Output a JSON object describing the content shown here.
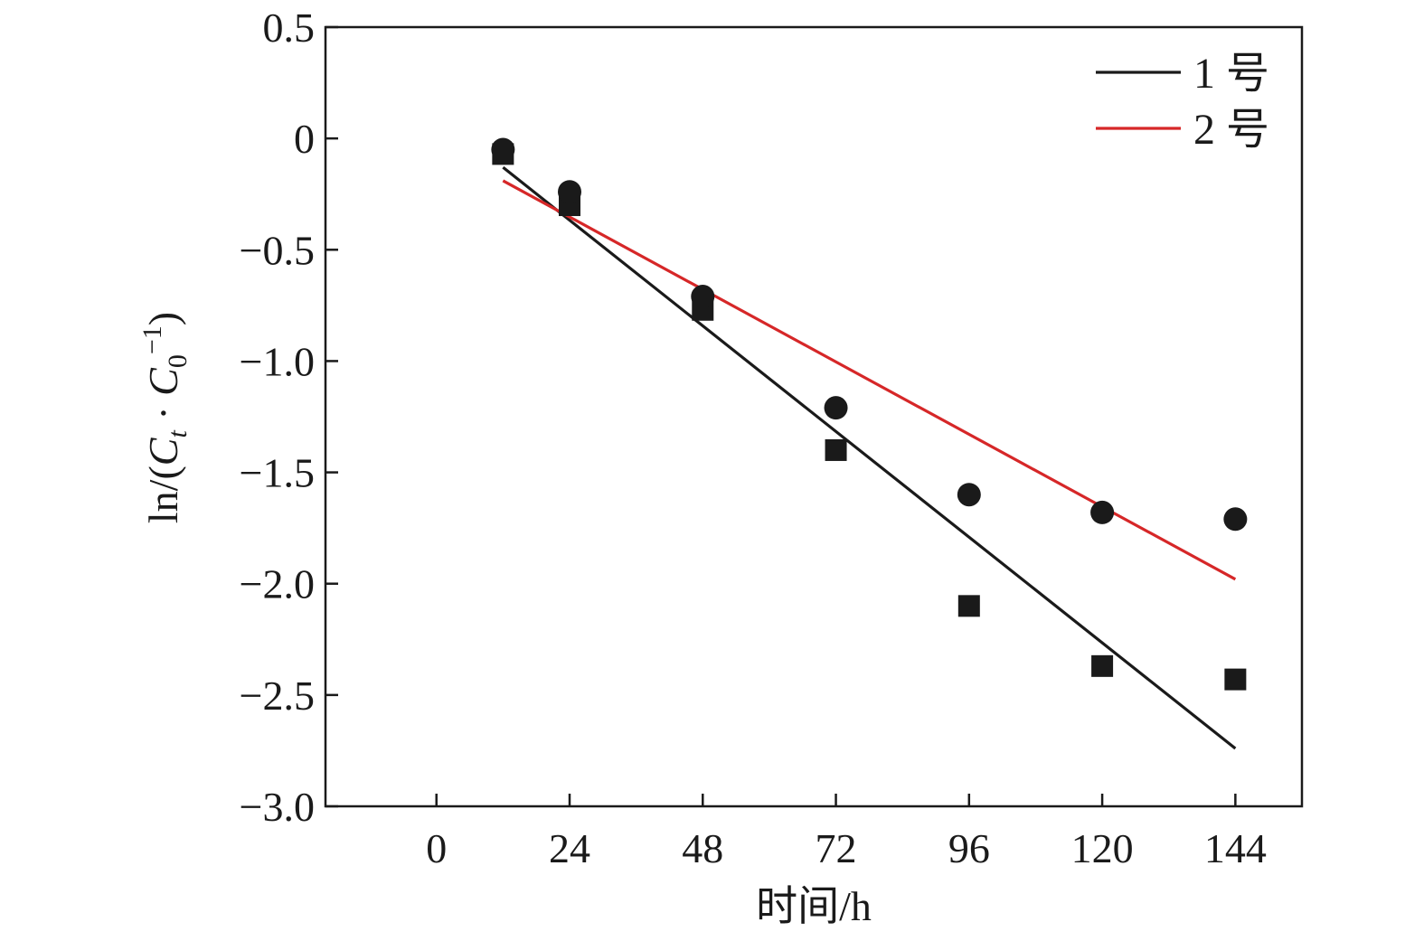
{
  "chart_data": {
    "type": "scatter",
    "x_title": "时间/h",
    "y_title_parts": [
      "ln/(",
      "C",
      "t",
      " · ",
      "C",
      "0",
      "−1",
      ")"
    ],
    "xlim": [
      -20,
      156
    ],
    "ylim": [
      -3.0,
      0.5
    ],
    "x_ticks": [
      0,
      24,
      48,
      72,
      96,
      120,
      144
    ],
    "y_ticks": [
      0.5,
      0,
      -0.5,
      -1.0,
      -1.5,
      -2.0,
      -2.5,
      -3.0
    ],
    "x_tick_labels": [
      "0",
      "24",
      "48",
      "72",
      "96",
      "120",
      "144"
    ],
    "y_tick_labels": [
      "0.5",
      "0",
      "−0.5",
      "−1.0",
      "−1.5",
      "−2.0",
      "−2.5",
      "−3.0"
    ],
    "series": [
      {
        "name": "1 号",
        "marker": "square",
        "color": "#1a1a1a",
        "x": [
          12,
          24,
          48,
          72,
          96,
          120,
          144
        ],
        "y": [
          -0.07,
          -0.3,
          -0.77,
          -1.4,
          -2.1,
          -2.37,
          -2.43
        ],
        "fit": {
          "x": [
            12,
            144
          ],
          "y": [
            -0.13,
            -2.74
          ]
        }
      },
      {
        "name": "2 号",
        "marker": "circle",
        "color": "#d62728",
        "point_color": "#1a1a1a",
        "x": [
          12,
          24,
          48,
          72,
          96,
          120,
          144
        ],
        "y": [
          -0.05,
          -0.24,
          -0.71,
          -1.21,
          -1.6,
          -1.68,
          -1.71
        ],
        "fit": {
          "x": [
            12,
            144
          ],
          "y": [
            -0.19,
            -1.98
          ]
        }
      }
    ],
    "legend": {
      "position": "top-right",
      "entries": [
        "1 号",
        "2 号"
      ]
    }
  }
}
